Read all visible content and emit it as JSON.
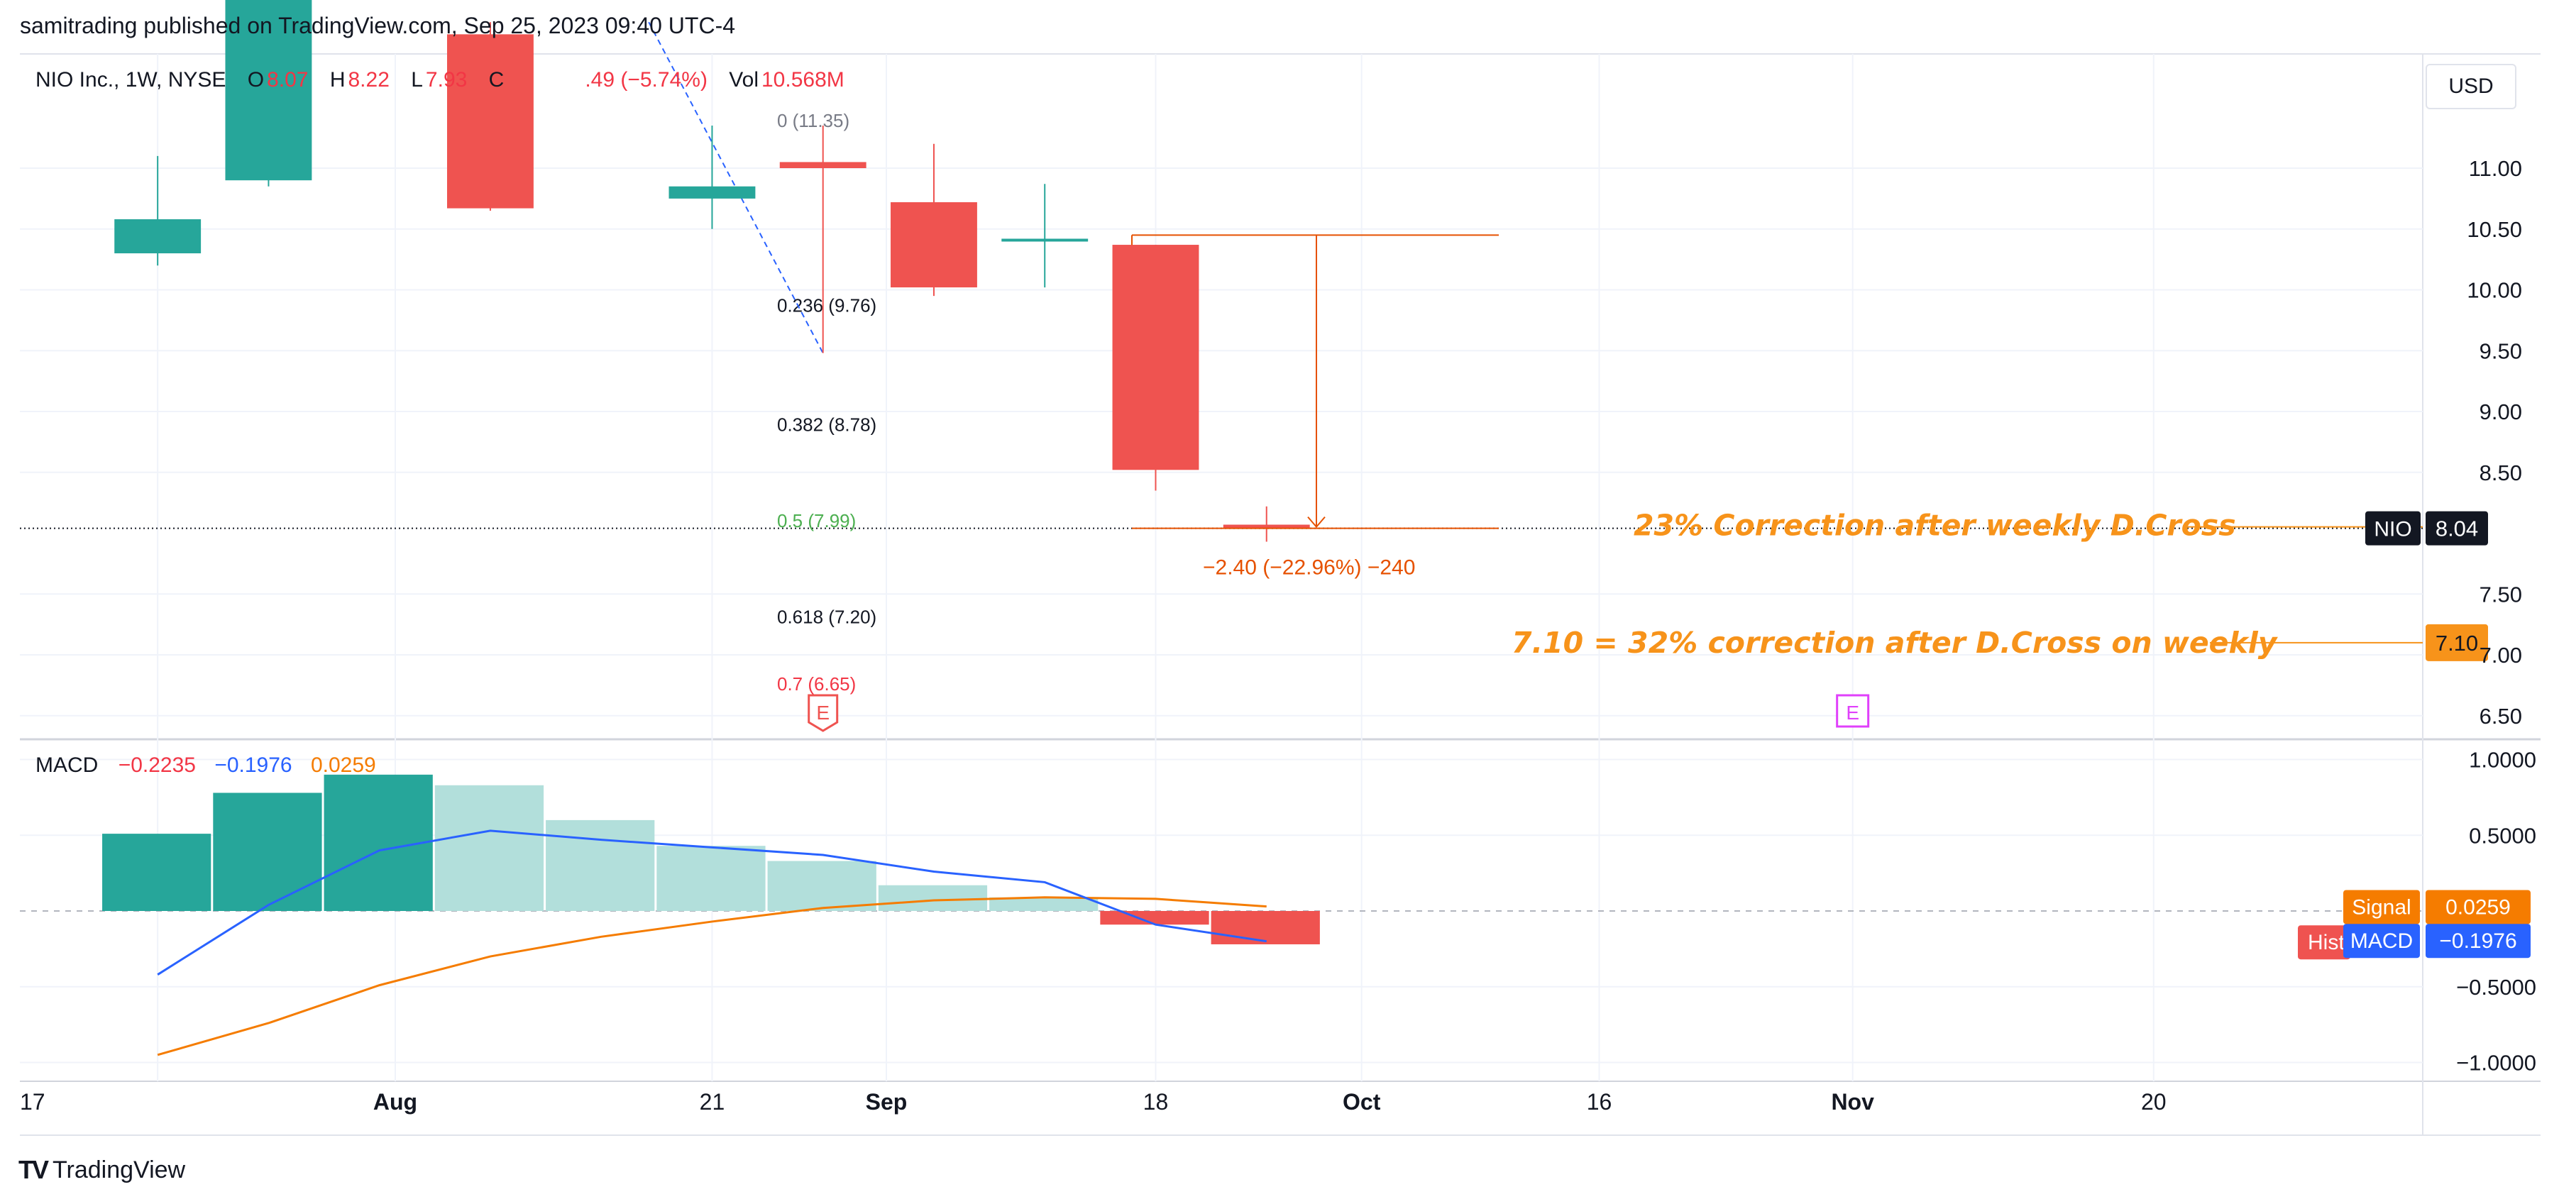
{
  "header": {
    "publisher": "samitrading published on TradingView.com, Sep 25, 2023 09:40 UTC-4"
  },
  "legend": {
    "symbol": "NIO Inc., 1W, NYSE",
    "o_label": "O",
    "o_value": "8.07",
    "h_label": "H",
    "h_value": "8.22",
    "l_label": "L",
    "l_value": "7.93",
    "c_label": "C",
    "c_value": ".49 (−5.74%)",
    "vol_label": "Vol",
    "vol_value": "10.568M"
  },
  "currency": "USD",
  "brand": {
    "mark": "TV",
    "name": "TradingView"
  },
  "macd_legend": {
    "label": "MACD",
    "hist": "−0.2235",
    "macd": "−0.1976",
    "signal": "0.0259"
  },
  "colors": {
    "up": "#26a69a",
    "down": "#ef5350",
    "macd_line": "#2962ff",
    "signal_line": "#f57c00",
    "annotation": "#f7931a",
    "fib_red": "#f23645",
    "fib_green": "#4caf50",
    "event_magenta": "#e040fb"
  },
  "chart_data": [
    {
      "type": "candlestick",
      "title": "NIO Inc., 1W, NYSE",
      "x_ticks": [
        "17",
        "Aug",
        "21",
        "Sep",
        "18",
        "Oct",
        "16",
        "Nov",
        "20"
      ],
      "y_ticks": [
        "11.00",
        "10.50",
        "10.00",
        "9.50",
        "9.00",
        "8.50",
        "7.50",
        "7.00",
        "6.50"
      ],
      "ylim": [
        6.35,
        11.95
      ],
      "candles": [
        {
          "date": "2023-07-17",
          "open": 10.3,
          "high": 11.1,
          "low": 10.2,
          "close": 10.58
        },
        {
          "date": "2023-07-24",
          "open": 10.9,
          "high": 12.6,
          "low": 10.85,
          "close": 12.4
        },
        {
          "date": "2023-08-07",
          "open": 12.1,
          "high": 12.2,
          "low": 10.65,
          "close": 10.67
        },
        {
          "date": "2023-08-21",
          "open": 10.75,
          "high": 11.35,
          "low": 10.5,
          "close": 10.85
        },
        {
          "date": "2023-08-28",
          "open": 11.05,
          "high": 11.35,
          "low": 9.48,
          "close": 11.0
        },
        {
          "date": "2023-09-04",
          "open": 10.72,
          "high": 11.2,
          "low": 9.95,
          "close": 10.02
        },
        {
          "date": "2023-09-11",
          "open": 10.4,
          "high": 10.87,
          "low": 10.02,
          "close": 10.42
        },
        {
          "date": "2023-09-18",
          "open": 10.37,
          "high": 10.37,
          "low": 8.35,
          "close": 8.52
        },
        {
          "date": "2023-09-25",
          "open": 8.07,
          "high": 8.22,
          "low": 7.93,
          "close": 8.04
        }
      ],
      "last_price": {
        "label": "NIO",
        "value": "8.04"
      },
      "target": {
        "value": "7.10",
        "text": "7.10 = 32% correction after D.Cross on weekly"
      },
      "correction_note": "23% Correction after weekly D.Cross",
      "measure": {
        "text": "−2.40 (−22.96%) −240",
        "from": 10.45,
        "to": 8.04
      },
      "fib_levels": [
        {
          "label": "0 (11.35)",
          "level": 11.35
        },
        {
          "label": "0.236 (9.76)",
          "level": 9.76
        },
        {
          "label": "0.382 (8.78)",
          "level": 8.78
        },
        {
          "label": "0.5 (7.99)",
          "level": 7.99
        },
        {
          "label": "0.618 (7.20)",
          "level": 7.2
        },
        {
          "label": "0.7 (6.65)",
          "level": 6.65
        }
      ],
      "events": [
        {
          "label": "E",
          "date": "2023-08-28"
        },
        {
          "label": "E",
          "date": "2023-11-01"
        }
      ]
    },
    {
      "type": "bar",
      "title": "MACD",
      "y_ticks": [
        "1.0000",
        "0.5000",
        "−0.5000",
        "−1.0000"
      ],
      "ylim": [
        -1.12,
        1.12
      ],
      "dates": [
        "2023-07-17",
        "2023-07-24",
        "2023-07-31",
        "2023-08-07",
        "2023-08-14",
        "2023-08-21",
        "2023-08-28",
        "2023-09-04",
        "2023-09-11",
        "2023-09-18",
        "2023-09-25"
      ],
      "histogram": [
        0.51,
        0.78,
        0.9,
        0.83,
        0.6,
        0.43,
        0.33,
        0.17,
        0.09,
        -0.09,
        -0.22
      ],
      "macd": [
        -0.42,
        0.04,
        0.4,
        0.53,
        0.47,
        0.42,
        0.37,
        0.26,
        0.19,
        -0.09,
        -0.2
      ],
      "signal": [
        -0.95,
        -0.74,
        -0.49,
        -0.3,
        -0.17,
        -0.07,
        0.02,
        0.07,
        0.09,
        0.08,
        0.03
      ],
      "labels": {
        "signal": "Signal",
        "signal_value": "0.0259",
        "macd": "MACD",
        "macd_value": "−0.1976",
        "hist": "Hist"
      }
    }
  ]
}
